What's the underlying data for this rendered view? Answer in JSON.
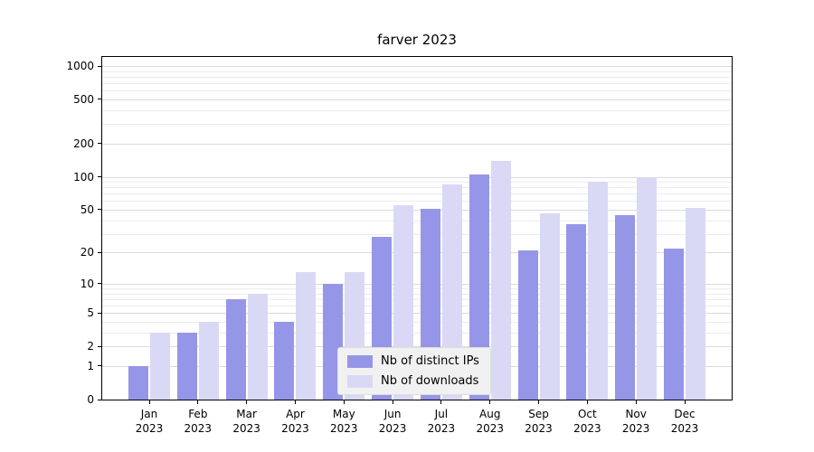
{
  "chart_data": {
    "type": "bar",
    "title": "farver 2023",
    "categories": [
      "Jan 2023",
      "Feb 2023",
      "Mar 2023",
      "Apr 2023",
      "May 2023",
      "Jun 2023",
      "Jul 2023",
      "Aug 2023",
      "Sep 2023",
      "Oct 2023",
      "Nov 2023",
      "Dec 2023"
    ],
    "series": [
      {
        "name": "Nb of distinct IPs",
        "color": "#9696e8",
        "values": [
          1,
          3,
          7,
          4,
          10,
          28,
          51,
          105,
          21,
          37,
          45,
          22
        ]
      },
      {
        "name": "Nb of downloads",
        "color": "#d9d9f6",
        "values": [
          3,
          4,
          8,
          13,
          13,
          55,
          85,
          140,
          46,
          90,
          97,
          52
        ]
      }
    ],
    "y_axis": {
      "scale": "log1p",
      "ticks": [
        0,
        1,
        2,
        5,
        10,
        20,
        50,
        100,
        200,
        500,
        1000
      ],
      "minor_gridlines": [
        3,
        4,
        6,
        7,
        8,
        9,
        30,
        40,
        60,
        70,
        80,
        90,
        300,
        400,
        600,
        700,
        800,
        900
      ],
      "max": 1200
    },
    "xlabel": "",
    "ylabel": "",
    "grid": true,
    "legend_position": "bottom-center"
  }
}
